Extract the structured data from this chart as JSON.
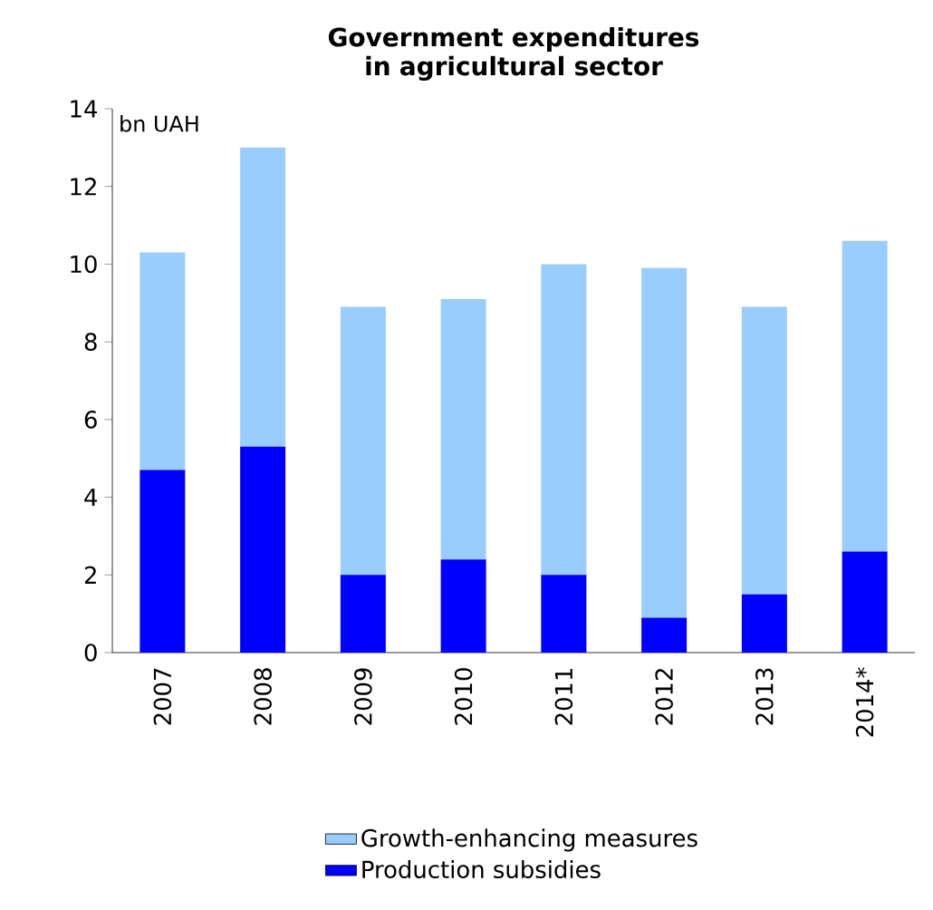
{
  "chart_data": {
    "type": "bar",
    "title": "Government expenditures  in agricultural sector",
    "ylabel": "bn UAH",
    "categories": [
      "2007",
      "2008",
      "2009",
      "2010",
      "2011",
      "2012",
      "2013",
      "2014*"
    ],
    "stacked": true,
    "series": [
      {
        "name": "Production subsidies",
        "color": "#0000ff",
        "values": [
          4.7,
          5.3,
          2.0,
          2.4,
          2.0,
          0.9,
          1.5,
          2.6
        ]
      },
      {
        "name": "Growth-enhancing measures",
        "color": "#99ccff",
        "values": [
          5.6,
          7.7,
          6.9,
          6.7,
          8.0,
          9.0,
          7.4,
          8.0
        ]
      }
    ],
    "ylim": [
      0,
      14
    ],
    "yticks": [
      0,
      2,
      4,
      6,
      8,
      10,
      12,
      14
    ],
    "grid": false,
    "legend": "bottom"
  }
}
